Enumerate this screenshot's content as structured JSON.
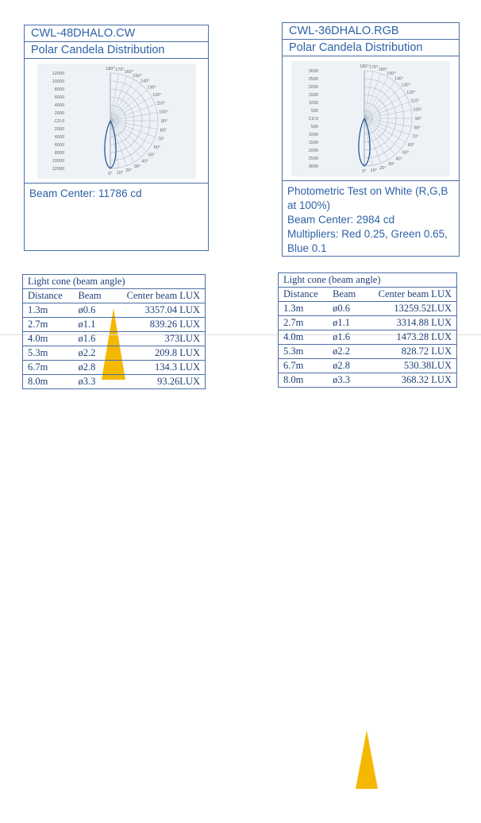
{
  "left": {
    "model": "CWL-48DHALO.CW",
    "section": "Polar Candela Distribution",
    "polar": {
      "cd_labels": [
        "12000",
        "10000",
        "8000",
        "6000",
        "4000",
        "2000",
        "CD:0",
        "2000",
        "4000",
        "6000",
        "8000",
        "10000",
        "12000"
      ],
      "top_angles": [
        "180°",
        "170°",
        "160°",
        "150°",
        "140°"
      ],
      "side_angles": [
        "130°",
        "120°",
        "110°",
        "100°",
        "90°",
        "80°",
        "70°",
        "60°",
        "50°"
      ],
      "bottom_angles": [
        "0°",
        "10°",
        "20°",
        "30°",
        "40°"
      ]
    },
    "notes": [
      "Beam Center: 11786 cd"
    ],
    "table": {
      "title": "Light cone (beam angle)",
      "headers": [
        "Distance",
        "Beam",
        "Center beam LUX"
      ],
      "rows": [
        [
          "1.3m",
          "ø0.6",
          "3357.04 LUX"
        ],
        [
          "2.7m",
          "ø1.1",
          "839.26 LUX"
        ],
        [
          "4.0m",
          "ø1.6",
          "373LUX"
        ],
        [
          "5.3m",
          "ø2.2",
          "209.8 LUX"
        ],
        [
          "6.7m",
          "ø2.8",
          "134.3 LUX"
        ],
        [
          "8.0m",
          "ø3.3",
          "93.26LUX"
        ]
      ]
    }
  },
  "right": {
    "model": "CWL-36DHALO.RGB",
    "section": "Polar Candela Distribution",
    "polar": {
      "cd_labels": [
        "3000",
        "2500",
        "2000",
        "1500",
        "1000",
        "500",
        "CD:0",
        "500",
        "1000",
        "1500",
        "2000",
        "2500",
        "3000"
      ],
      "top_angles": [
        "180°",
        "170°",
        "160°",
        "150°",
        "140°"
      ],
      "side_angles": [
        "130°",
        "120°",
        "110°",
        "100°",
        "90°",
        "80°",
        "70°",
        "60°",
        "50°"
      ],
      "bottom_angles": [
        "0°",
        "10°",
        "20°",
        "30°",
        "40°"
      ]
    },
    "notes": [
      "Photometric Test on White (R,G,B at 100%)",
      "Beam Center: 2984 cd",
      "Multipliers: Red 0.25, Green 0.65, Blue 0.1"
    ],
    "table": {
      "title": "Light cone (beam angle)",
      "headers": [
        "Distance",
        "Beam",
        "Center beam LUX"
      ],
      "rows": [
        [
          "1.3m",
          "ø0.6",
          "13259.52LUX"
        ],
        [
          "2.7m",
          "ø1.1",
          "3314.88 LUX"
        ],
        [
          "4.0m",
          "ø1.6",
          "1473.28 LUX"
        ],
        [
          "5.3m",
          "ø2.2",
          "828.72 LUX"
        ],
        [
          "6.7m",
          "ø2.8",
          "530.38LUX"
        ],
        [
          "8.0m",
          "ø3.3",
          "368.32 LUX"
        ]
      ]
    }
  }
}
